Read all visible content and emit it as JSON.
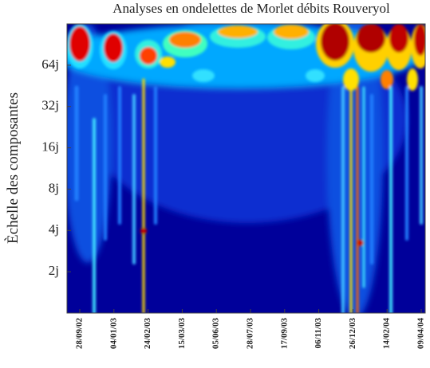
{
  "chart_data": {
    "type": "heatmap",
    "title": "Analyses en ondelettes de Morlet débits Rouveryol",
    "ylabel": "Èchelle des composantes",
    "categories": [
      "28/09/02",
      "04/01/03",
      "24/02/03",
      "15/03/03",
      "05/06/03",
      "28/07/03",
      "17/09/03",
      "06/11/03",
      "26/12/03",
      "14/02/04",
      "09/04/04"
    ],
    "ylim": [
      1,
      128
    ],
    "log_y": true,
    "yticks": [
      {
        "value": 2,
        "label": "2j"
      },
      {
        "value": 4,
        "label": "4j"
      },
      {
        "value": 8,
        "label": "8j"
      },
      {
        "value": 16,
        "label": "16j"
      },
      {
        "value": 32,
        "label": "32j"
      },
      {
        "value": 64,
        "label": "64j"
      }
    ]
  }
}
